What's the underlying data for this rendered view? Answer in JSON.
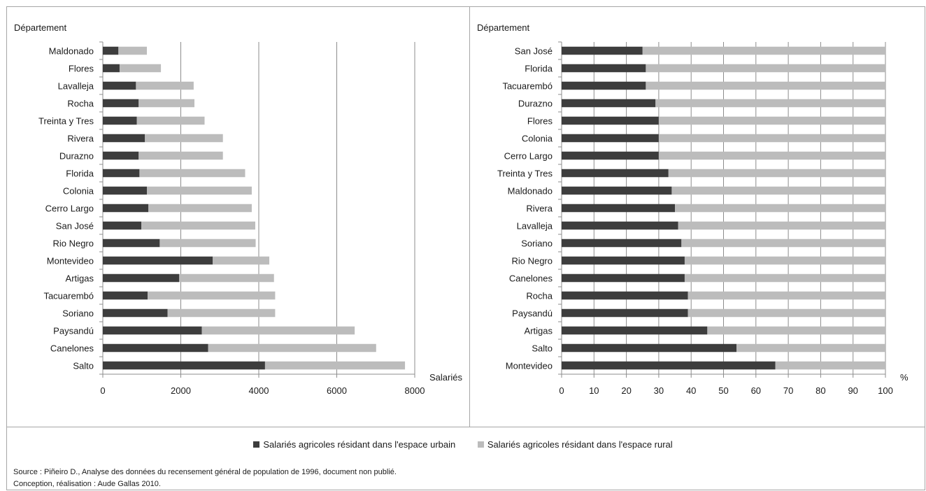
{
  "colors": {
    "urban": "#3d3d3d",
    "rural": "#bcbcbc",
    "grid": "#8c8c8c",
    "axis": "#8c8c8c"
  },
  "legend": {
    "urban": "Salariés agricoles résidant dans l'espace urbain",
    "rural": "Salariés agricoles résidant dans l'espace rural"
  },
  "notes": {
    "source": "Source : Piñeiro D., Analyse des données du recensement général de population de 1996, document non publié.",
    "credits": "Conception, réalisation : Aude Gallas 2010."
  },
  "chart_data": [
    {
      "type": "bar",
      "orientation": "horizontal",
      "stacked": true,
      "ylabel": "Département",
      "xlabel": "Salariés",
      "xlim": [
        0,
        8000
      ],
      "xticks": [
        0,
        2000,
        4000,
        6000,
        8000
      ],
      "grid": true,
      "categories": [
        "Maldonado",
        "Flores",
        "Lavalleja",
        "Rocha",
        "Treinta y Tres",
        "Rivera",
        "Durazno",
        "Florida",
        "Colonia",
        "Cerro Largo",
        "San José",
        "Rio Negro",
        "Montevideo",
        "Artigas",
        "Tacuarembó",
        "Soriano",
        "Paysandú",
        "Canelones",
        "Salto"
      ],
      "series": [
        {
          "name": "Salariés agricoles résidant dans l'espace urbain",
          "values": [
            400,
            430,
            850,
            920,
            870,
            1080,
            920,
            940,
            1130,
            1170,
            990,
            1460,
            2820,
            1960,
            1150,
            1660,
            2540,
            2700,
            4160
          ]
        },
        {
          "name": "Salariés agricoles résidant dans l'espace rural",
          "values": [
            730,
            1060,
            1480,
            1430,
            1740,
            2000,
            2160,
            2710,
            2690,
            2650,
            2920,
            2460,
            1450,
            2430,
            3270,
            2760,
            3920,
            4310,
            3590
          ]
        }
      ]
    },
    {
      "type": "bar",
      "orientation": "horizontal",
      "stacked": true,
      "ylabel": "Département",
      "xlabel": "%",
      "xlim": [
        0,
        100
      ],
      "xticks": [
        0,
        10,
        20,
        30,
        40,
        50,
        60,
        70,
        80,
        90,
        100
      ],
      "grid": true,
      "categories": [
        "San José",
        "Florida",
        "Tacuarembó",
        "Durazno",
        "Flores",
        "Colonia",
        "Cerro Largo",
        "Treinta y Tres",
        "Maldonado",
        "Rivera",
        "Lavalleja",
        "Soriano",
        "Rio Negro",
        "Canelones",
        "Rocha",
        "Paysandú",
        "Artigas",
        "Salto",
        "Montevideo"
      ],
      "series": [
        {
          "name": "Salariés agricoles résidant dans l'espace urbain",
          "values": [
            25,
            26,
            26,
            29,
            30,
            30,
            30,
            33,
            34,
            35,
            36,
            37,
            38,
            38,
            39,
            39,
            45,
            54,
            66
          ]
        },
        {
          "name": "Salariés agricoles résidant dans l'espace rural",
          "values": [
            75,
            74,
            74,
            71,
            70,
            70,
            70,
            67,
            66,
            65,
            64,
            63,
            62,
            62,
            61,
            61,
            55,
            46,
            34
          ]
        }
      ]
    }
  ]
}
